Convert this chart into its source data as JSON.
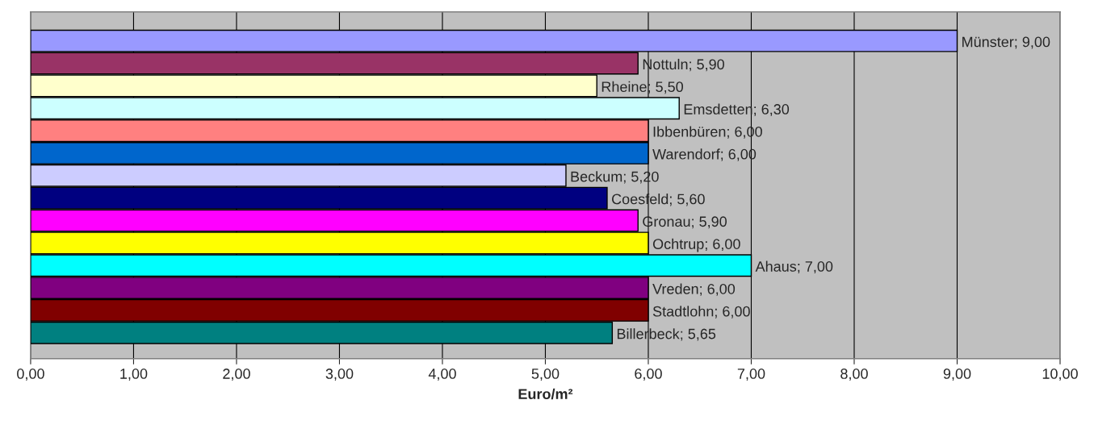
{
  "chart_data": {
    "type": "bar",
    "orientation": "horizontal",
    "xlabel": "Euro/m²",
    "categories": [
      null,
      null,
      null,
      null,
      null,
      null,
      null,
      null,
      null,
      null,
      null,
      null,
      null,
      null
    ],
    "values": [
      9.0,
      5.9,
      5.5,
      6.3,
      6.0,
      6.0,
      5.2,
      5.6,
      5.9,
      6.0,
      7.0,
      6.0,
      6.0,
      5.65
    ],
    "colors": [
      "#9999ff",
      "#993366",
      "#ffffcc",
      "#ccffff",
      "#ff8080",
      "#0066cc",
      "#ccccff",
      "#000080",
      "#ff00ff",
      "#ffff00",
      "#00ffff",
      "#800080",
      "#800000",
      "#008080"
    ],
    "value_labels": [
      "Münster; 9,00",
      "Nottuln; 5,90",
      "Rheine; 5,50",
      "Emsdetten; 6,30",
      "Ibbenbüren; 6,00",
      "Warendorf; 6,00",
      "Beckum; 5,20",
      "Coesfeld; 5,60",
      "Gronau; 5,90",
      "Ochtrup; 6,00",
      "Ahaus; 7,00",
      "Vreden; 6,00",
      "Stadtlohn; 6,00",
      "Billerbeck; 5,65"
    ],
    "xlim": [
      0,
      10
    ],
    "xticks": [
      {
        "value": 0,
        "label": "0,00"
      },
      {
        "value": 1,
        "label": "1,00"
      },
      {
        "value": 2,
        "label": "2,00"
      },
      {
        "value": 3,
        "label": "3,00"
      },
      {
        "value": 4,
        "label": "4,00"
      },
      {
        "value": 5,
        "label": "5,00"
      },
      {
        "value": 6,
        "label": "6,00"
      },
      {
        "value": 7,
        "label": "7,00"
      },
      {
        "value": 8,
        "label": "8,00"
      },
      {
        "value": 9,
        "label": "9,00"
      },
      {
        "value": 10,
        "label": "10,00"
      }
    ],
    "grid": "x",
    "tick_labels": "x",
    "legend": false
  }
}
